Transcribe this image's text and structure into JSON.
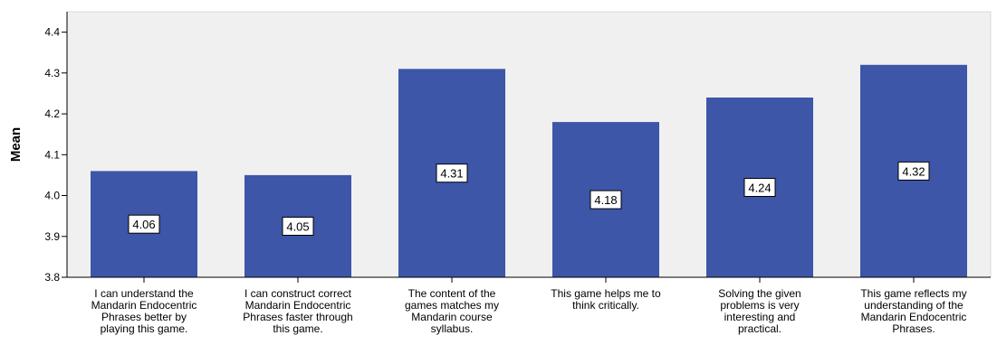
{
  "chart_data": {
    "type": "bar",
    "title": "",
    "xlabel": "",
    "ylabel": "Mean",
    "ylim": [
      3.8,
      4.45
    ],
    "yticks": [
      "3.8",
      "3.9",
      "4.0",
      "4.1",
      "4.2",
      "4.3",
      "4.4"
    ],
    "grid": false,
    "legend": "none",
    "categories": [
      "I can understand the Mandarin Endocentric Phrases better by playing this game.",
      "I can construct correct Mandarin Endocentric Phrases faster through this game.",
      "The content of the games matches my Mandarin course syllabus.",
      "This game helps me to think critically.",
      "Solving the given problems is very interesting and practical.",
      "This game reflects my understanding of the Mandarin Endocentric Phrases."
    ],
    "category_lines": [
      [
        "I can understand the",
        "Mandarin Endocentric",
        "Phrases better by",
        "playing this game."
      ],
      [
        "I can construct correct",
        "Mandarin Endocentric",
        "Phrases faster through",
        "this game."
      ],
      [
        "The content of the",
        "games matches my",
        "Mandarin course",
        "syllabus."
      ],
      [
        "This game helps me to",
        "think critically."
      ],
      [
        "Solving the given",
        "problems is very",
        "interesting and",
        "practical."
      ],
      [
        "This game reflects my",
        "understanding of the",
        "Mandarin Endocentric",
        "Phrases."
      ]
    ],
    "values": [
      4.06,
      4.05,
      4.31,
      4.18,
      4.24,
      4.32
    ],
    "data_labels": [
      "4.06",
      "4.05",
      "4.31",
      "4.18",
      "4.24",
      "4.32"
    ],
    "colors": {
      "bar": "#3d56a8",
      "plot_background": "#f0f0f0",
      "axis": "#000000"
    }
  }
}
